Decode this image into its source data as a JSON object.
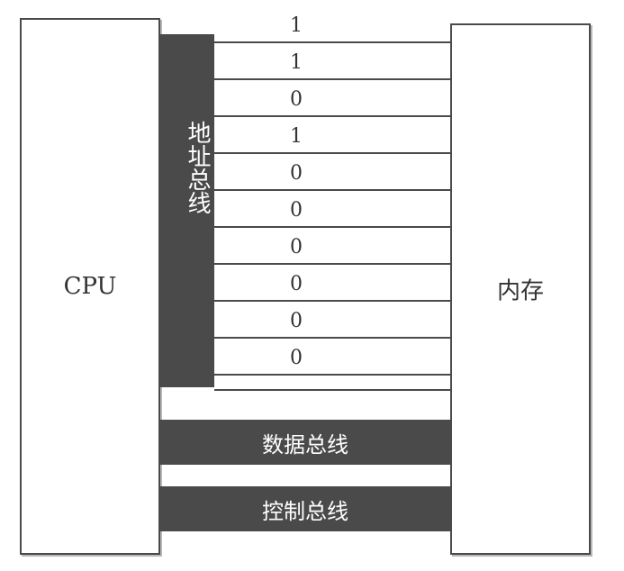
{
  "cpu": {
    "label": "CPU"
  },
  "memory": {
    "label": "内存"
  },
  "address_bus": {
    "label": "地址总线",
    "bits": [
      "1",
      "1",
      "0",
      "1",
      "0",
      "0",
      "0",
      "0",
      "0",
      "0"
    ]
  },
  "data_bus": {
    "label": "数据总线"
  },
  "control_bus": {
    "label": "控制总线"
  },
  "colors": {
    "bus": "#4a4a4a",
    "outline": "#4a4a4a",
    "text": "#333333"
  }
}
